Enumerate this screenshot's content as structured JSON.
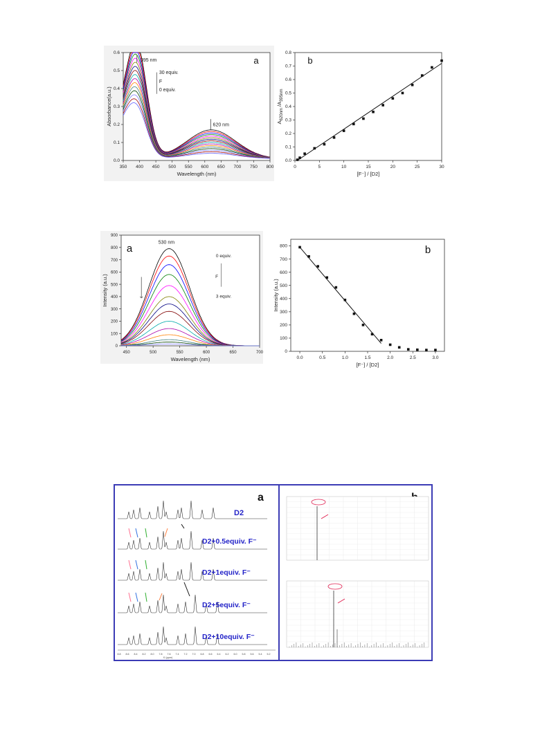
{
  "chart_data": [
    {
      "id": "fig1a",
      "type": "line",
      "panel_label": "a",
      "xlabel": "Wavelength (nm)",
      "ylabel": "Absorbance(a.u.)",
      "xlim": [
        350,
        800
      ],
      "ylim": [
        0.0,
        0.6
      ],
      "xticks": [
        "350",
        "400",
        "450",
        "500",
        "550",
        "600",
        "650",
        "700",
        "750",
        "800"
      ],
      "yticks": [
        "0.0",
        "0.1",
        "0.2",
        "0.3",
        "0.4",
        "0.5",
        "0.6"
      ],
      "annotations": [
        "395 nm",
        "620 nm",
        "30 equiv.",
        "F",
        "0 equiv."
      ],
      "n_series": 16,
      "peak1": {
        "x": 395,
        "y_max": 0.53,
        "y_min": 0.22
      },
      "peak2": {
        "x": 620,
        "y_max": 0.16,
        "y_min": 0.03
      },
      "series_colors": [
        "#000000",
        "#ff0000",
        "#0000ff",
        "#008000",
        "#ff00ff",
        "#808000",
        "#000080",
        "#800000",
        "#00aaaa",
        "#aa00aa",
        "#ff8000",
        "#408080",
        "#004000",
        "#8080ff",
        "#a00000",
        "#6060ff"
      ]
    },
    {
      "id": "fig1b",
      "type": "scatter",
      "panel_label": "b",
      "xlabel": "[F⁻] / [D2]",
      "ylabel_main": "A",
      "ylabel_sub1": "620nm",
      "ylabel_mid": " /A",
      "ylabel_sub2": "395nm",
      "xlim": [
        0,
        30
      ],
      "ylim": [
        0.0,
        0.8
      ],
      "xticks": [
        "0",
        "5",
        "10",
        "15",
        "20",
        "25",
        "30"
      ],
      "yticks": [
        "0.0",
        "0.1",
        "0.2",
        "0.3",
        "0.4",
        "0.5",
        "0.6",
        "0.7",
        "0.8"
      ],
      "x": [
        0.5,
        1,
        2,
        4,
        6,
        8,
        10,
        12,
        14,
        16,
        18,
        20,
        22,
        24,
        26,
        28,
        30
      ],
      "y": [
        0.005,
        0.02,
        0.05,
        0.09,
        0.12,
        0.17,
        0.22,
        0.27,
        0.31,
        0.36,
        0.41,
        0.46,
        0.5,
        0.56,
        0.63,
        0.69,
        0.74
      ],
      "fit": {
        "x": [
          0.5,
          30
        ],
        "y": [
          0.0,
          0.72
        ]
      }
    },
    {
      "id": "fig2a",
      "type": "line",
      "panel_label": "a",
      "xlabel": "Wavelength (nm)",
      "ylabel": "Intensity (a.u.)",
      "xlim": [
        440,
        700
      ],
      "ylim": [
        0,
        900
      ],
      "xticks": [
        "450",
        "500",
        "550",
        "600",
        "650",
        "700"
      ],
      "yticks": [
        "0",
        "100",
        "200",
        "300",
        "400",
        "500",
        "600",
        "700",
        "800",
        "900"
      ],
      "annotations": [
        "530 nm",
        "0 equiv.",
        "F",
        "3 equiv."
      ],
      "peak_x": 530,
      "peaks": [
        790,
        730,
        660,
        580,
        490,
        400,
        340,
        280,
        200,
        140,
        90,
        50,
        30,
        15
      ],
      "series_colors": [
        "#000000",
        "#ff0000",
        "#0000ff",
        "#008000",
        "#ff00ff",
        "#808000",
        "#000080",
        "#800000",
        "#00aaaa",
        "#aa00aa",
        "#ff8000",
        "#408080",
        "#004000",
        "#8080ff"
      ]
    },
    {
      "id": "fig2b",
      "type": "scatter",
      "panel_label": "b",
      "xlabel": "[F⁻] / [D2]",
      "ylabel": "Intensity (a.u.)",
      "xlim": [
        -0.2,
        3.2
      ],
      "ylim": [
        0,
        850
      ],
      "xticks": [
        "0.0",
        "0.5",
        "1.0",
        "1.5",
        "2.0",
        "2.5",
        "3.0"
      ],
      "yticks": [
        "0",
        "100",
        "200",
        "300",
        "400",
        "500",
        "600",
        "700",
        "800"
      ],
      "x": [
        0.0,
        0.2,
        0.4,
        0.6,
        0.8,
        1.0,
        1.2,
        1.4,
        1.6,
        1.8,
        2.0,
        2.2,
        2.4,
        2.6,
        2.8,
        3.0
      ],
      "y": [
        790,
        720,
        645,
        560,
        485,
        390,
        285,
        200,
        130,
        85,
        50,
        30,
        15,
        12,
        10,
        10
      ],
      "fit": {
        "x": [
          0.0,
          1.8
        ],
        "y": [
          790,
          60
        ]
      }
    }
  ],
  "nmr": {
    "panel_a_label": "a",
    "panel_b_label": "b",
    "traces": [
      "D2",
      "D2+0.5equiv. F⁻",
      "D2+1equiv. F⁻",
      "D2+5equiv. F⁻",
      "D2+10equiv. F⁻"
    ],
    "xaxis_label": "f1 (ppm)",
    "xticks": [
      "8.8",
      "8.6",
      "8.4",
      "8.2",
      "8.0",
      "7.8",
      "7.6",
      "7.4",
      "7.2",
      "7.0",
      "6.8",
      "6.6",
      "6.4",
      "6.2",
      "6.0",
      "5.8",
      "5.6",
      "5.4",
      "5.2"
    ],
    "arrow_colors": [
      "#ff7090",
      "#3070e0",
      "#30b030",
      "#ff8040",
      "#111111"
    ],
    "label_color": "#2323c8",
    "ms_highlight_color": "#e02050"
  }
}
